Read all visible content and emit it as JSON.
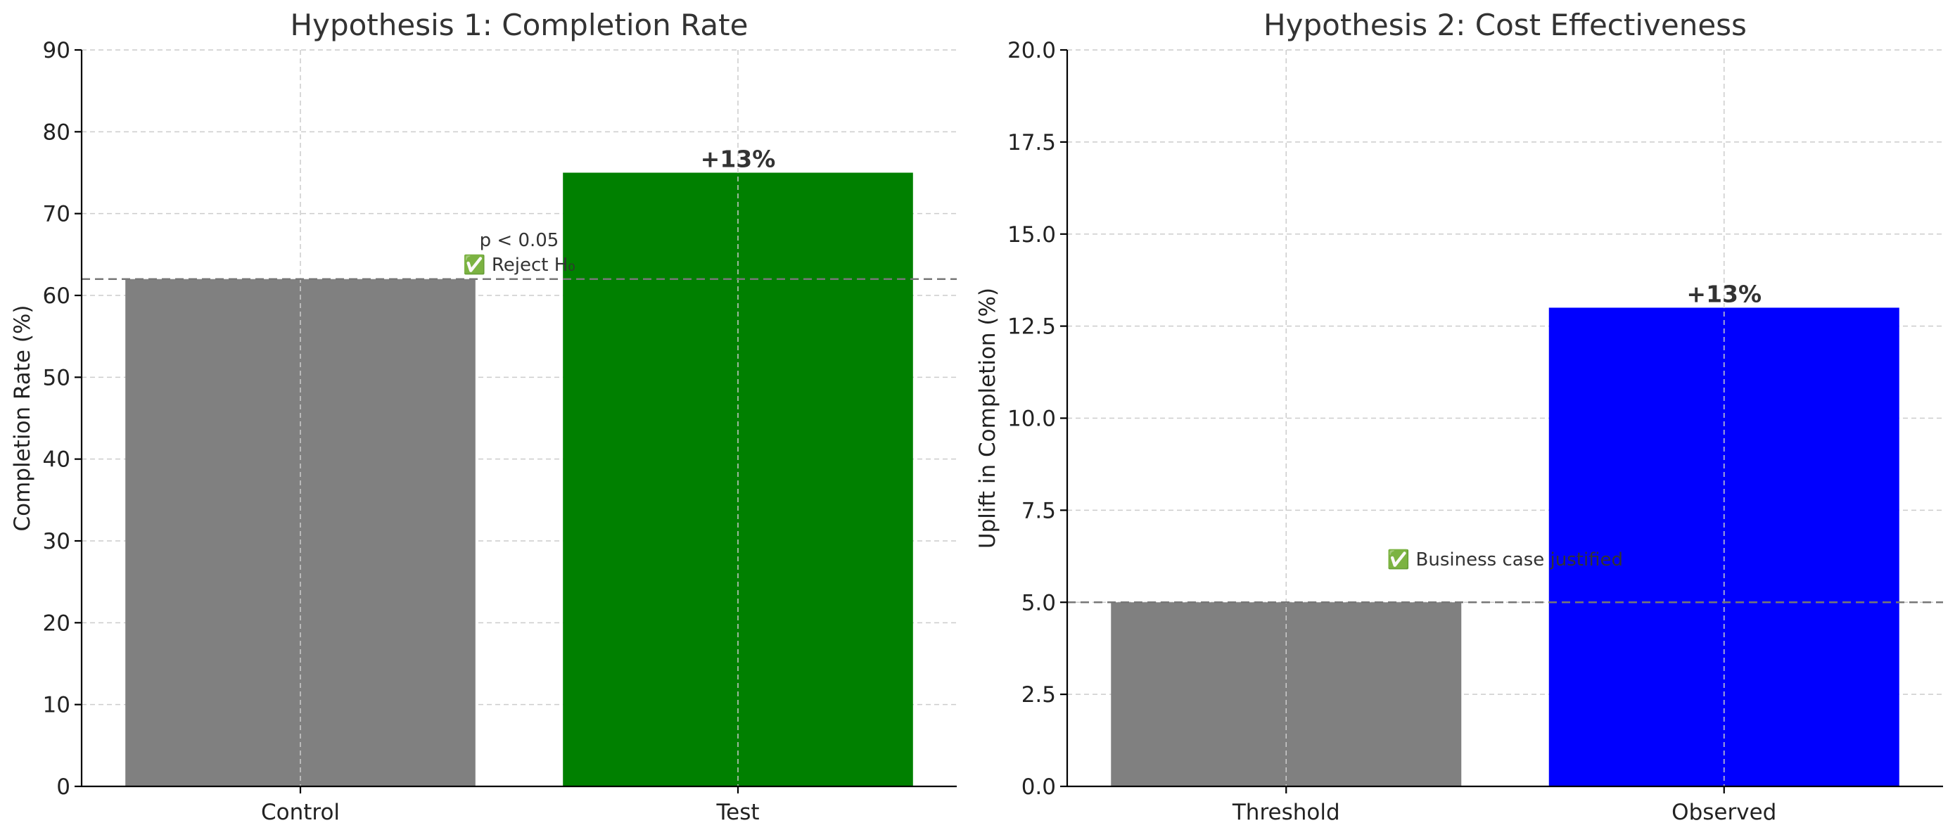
{
  "chart_data": [
    {
      "type": "bar",
      "title": "Hypothesis 1: Completion Rate",
      "xlabel": "",
      "ylabel": "Completion Rate (%)",
      "categories": [
        "Control",
        "Test"
      ],
      "values": [
        62,
        75
      ],
      "colors": [
        "#808080",
        "#008000"
      ],
      "ylim": [
        0,
        90
      ],
      "yticks": [
        0,
        10,
        20,
        30,
        40,
        50,
        60,
        70,
        80,
        90
      ],
      "ytick_labels": [
        "0",
        "10",
        "20",
        "30",
        "40",
        "50",
        "60",
        "70",
        "80",
        "90"
      ],
      "grid": true,
      "reference_line": {
        "value": 62,
        "color": "#777777",
        "style": "dashed"
      },
      "bar_labels": [
        {
          "category": "Test",
          "text": "+13%"
        }
      ],
      "annotations": [
        {
          "text": "p < 0.05",
          "x": 0.5,
          "y": 66
        },
        {
          "text": "✅ Reject H₀",
          "x": 0.5,
          "y": 63
        }
      ]
    },
    {
      "type": "bar",
      "title": "Hypothesis 2: Cost Effectiveness",
      "xlabel": "",
      "ylabel": "Uplift in Completion (%)",
      "categories": [
        "Threshold",
        "Observed"
      ],
      "values": [
        5,
        13
      ],
      "colors": [
        "#808080",
        "#0000ff"
      ],
      "ylim": [
        0,
        20
      ],
      "yticks": [
        0,
        2.5,
        5,
        7.5,
        10,
        12.5,
        15,
        17.5,
        20
      ],
      "ytick_labels": [
        "0.0",
        "2.5",
        "5.0",
        "7.5",
        "10.0",
        "12.5",
        "15.0",
        "17.5",
        "20.0"
      ],
      "grid": true,
      "reference_line": {
        "value": 5,
        "color": "#777777",
        "style": "dashed"
      },
      "bar_labels": [
        {
          "category": "Observed",
          "text": "+13%"
        }
      ],
      "annotations": [
        {
          "text": "✅ Business case justified",
          "x": 0.5,
          "y": 6
        }
      ]
    }
  ]
}
